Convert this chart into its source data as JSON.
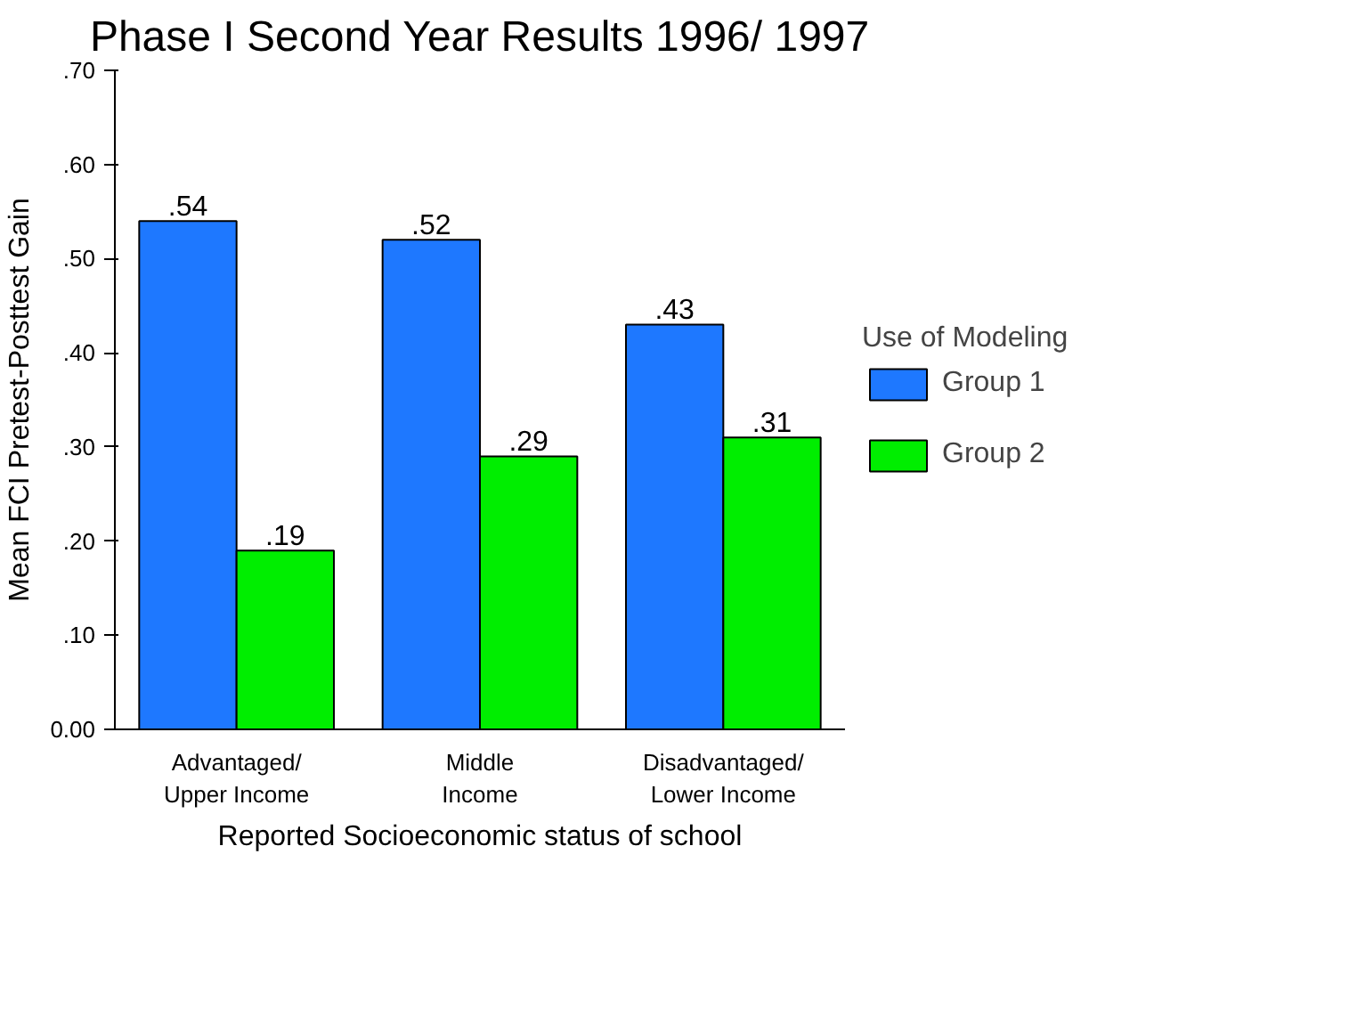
{
  "chart_data": {
    "type": "bar",
    "title": "Phase I Second Year Results 1996/ 1997",
    "xlabel": "Reported Socioeconomic status of school",
    "ylabel": "Mean FCI Pretest-Posttest Gain",
    "legend_title": "Use of Modeling",
    "categories": [
      "Advantaged/\nUpper Income",
      "Middle\nIncome",
      "Disadvantaged/\nLower Income"
    ],
    "series": [
      {
        "name": "Group 1",
        "color": "#1e78ff",
        "values": [
          0.54,
          0.52,
          0.43
        ],
        "value_labels": [
          ".54",
          ".52",
          ".43"
        ]
      },
      {
        "name": "Group 2",
        "color": "#00ee00",
        "values": [
          0.19,
          0.29,
          0.31
        ],
        "value_labels": [
          ".19",
          ".29",
          ".31"
        ]
      }
    ],
    "ylim": [
      0,
      0.7
    ],
    "yticks": [
      {
        "value": 0,
        "label": "0.00"
      },
      {
        "value": 0.1,
        "label": ".10"
      },
      {
        "value": 0.2,
        "label": ".20"
      },
      {
        "value": 0.3,
        "label": ".30"
      },
      {
        "value": 0.4,
        "label": ".40"
      },
      {
        "value": 0.5,
        "label": ".50"
      },
      {
        "value": 0.6,
        "label": ".60"
      },
      {
        "value": 0.7,
        "label": ".70"
      }
    ],
    "grid": false,
    "legend": "right"
  }
}
